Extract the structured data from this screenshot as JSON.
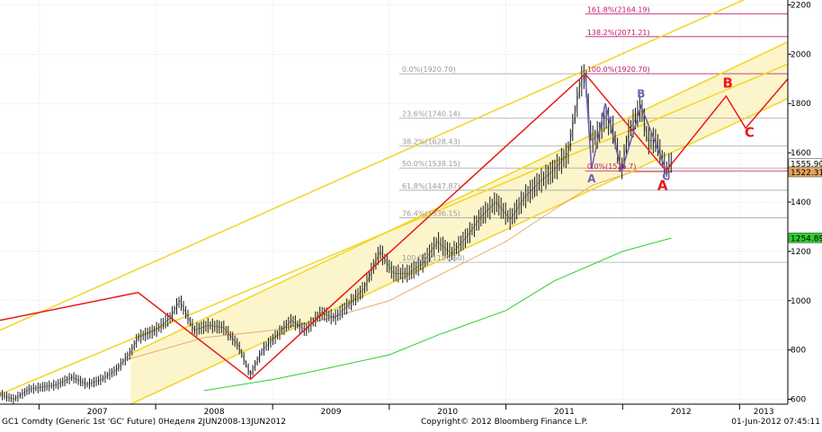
{
  "chart_data": {
    "type": "line",
    "title": "",
    "xlabel": "",
    "ylabel": "",
    "xlim": [
      "2006-09-01",
      "2013-06-01"
    ],
    "ylim": [
      580,
      2220
    ],
    "y_ticks": [
      600,
      800,
      1000,
      1200,
      1400,
      1600,
      1800,
      2000,
      2200
    ],
    "x_tick_labels": [
      {
        "label": "2007",
        "date": "2007-01-01"
      },
      {
        "label": "2008",
        "date": "2008-01-01"
      },
      {
        "label": "2009",
        "date": "2009-01-01"
      },
      {
        "label": "2010",
        "date": "2010-01-01"
      },
      {
        "label": "2011",
        "date": "2011-01-01"
      },
      {
        "label": "2012",
        "date": "2012-01-01"
      },
      {
        "label": "2013",
        "date": "2013-01-01"
      }
    ],
    "grid": true,
    "legend": "none",
    "colors": {
      "price": "#1a1a1a",
      "ma_fast": "#e8a662",
      "ma_slow": "#2fcf2f",
      "channel": "#f2d72e",
      "channel_fill": "#fbf3c2",
      "zigzag": "#e8191a",
      "wave_small": "#6a63b8",
      "fib_up": "#c0186e",
      "fib_down": "#999999"
    },
    "series": [
      {
        "name": "",
        "kind": "price",
        "x": [
          "2006-09-01",
          "2006-10-15",
          "2006-12-01",
          "2007-01-15",
          "2007-03-01",
          "2007-04-15",
          "2007-06-01",
          "2007-07-15",
          "2007-09-01",
          "2007-10-15",
          "2007-11-07",
          "2008-01-01",
          "2008-02-15",
          "2008-03-17",
          "2008-05-01",
          "2008-06-15",
          "2008-08-01",
          "2008-09-15",
          "2008-10-24",
          "2008-12-01",
          "2009-01-15",
          "2009-03-01",
          "2009-04-15",
          "2009-06-01",
          "2009-07-15",
          "2009-09-01",
          "2009-10-15",
          "2009-12-03",
          "2010-01-15",
          "2010-03-01",
          "2010-04-15",
          "2010-06-01",
          "2010-07-15",
          "2010-09-01",
          "2010-10-15",
          "2010-12-01",
          "2011-01-15",
          "2011-03-01",
          "2011-04-15",
          "2011-06-01",
          "2011-07-15",
          "2011-08-22",
          "2011-09-06",
          "2011-09-26",
          "2011-10-20",
          "2011-11-08",
          "2011-12-01",
          "2011-12-29",
          "2012-01-20",
          "2012-02-28",
          "2012-03-20",
          "2012-04-15",
          "2012-05-16",
          "2012-06-01"
        ],
        "y": [
          620,
          600,
          640,
          650,
          660,
          690,
          660,
          680,
          720,
          790,
          850,
          880,
          930,
          1000,
          880,
          900,
          890,
          820,
          700,
          800,
          860,
          920,
          880,
          950,
          930,
          990,
          1050,
          1200,
          1110,
          1110,
          1150,
          1240,
          1190,
          1260,
          1340,
          1400,
          1330,
          1420,
          1480,
          1530,
          1600,
          1880,
          1920,
          1650,
          1680,
          1750,
          1700,
          1530,
          1680,
          1790,
          1650,
          1650,
          1530,
          1560
        ]
      },
      {
        "name": "",
        "kind": "ma_fast",
        "x": [
          "2007-10-01",
          "2008-06-01",
          "2009-01-01",
          "2009-06-01",
          "2010-01-01",
          "2010-06-01",
          "2011-01-01",
          "2011-06-01",
          "2011-10-01",
          "2012-02-01",
          "2012-06-01"
        ],
        "y": [
          760,
          850,
          880,
          920,
          1000,
          1100,
          1240,
          1370,
          1470,
          1522,
          1522
        ]
      },
      {
        "name": "",
        "kind": "ma_slow",
        "x": [
          "2008-06-01",
          "2009-01-01",
          "2009-06-01",
          "2010-01-01",
          "2010-06-01",
          "2011-01-01",
          "2011-06-01",
          "2012-01-01",
          "2012-06-01"
        ],
        "y": [
          635,
          680,
          720,
          780,
          860,
          960,
          1080,
          1200,
          1254
        ]
      },
      {
        "name": "",
        "kind": "zigzag",
        "x": [
          "2006-09-01",
          "2007-11-07",
          "2008-10-24",
          "2011-09-06",
          "2012-05-16",
          "2012-11-20",
          "2013-01-20",
          "2013-06-01"
        ],
        "y": [
          920,
          1033,
          681,
          1920,
          1527,
          1830,
          1700,
          1900
        ]
      },
      {
        "name": "",
        "kind": "wave_small",
        "x": [
          "2011-09-06",
          "2011-09-26",
          "2011-11-08",
          "2011-12-29",
          "2012-02-28",
          "2012-05-16"
        ],
        "y": [
          1920,
          1535,
          1800,
          1523,
          1790,
          1527
        ]
      }
    ],
    "channels": [
      {
        "kind": "outer",
        "x": [
          "2006-09-01",
          "2013-06-01"
        ],
        "y": [
          620,
          1960
        ]
      },
      {
        "kind": "outer",
        "x": [
          "2006-09-01",
          "2013-06-01"
        ],
        "y": [
          880,
          2300
        ]
      },
      {
        "kind": "inner",
        "x": [
          "2007-10-15",
          "2013-06-01"
        ],
        "y": [
          785,
          2050
        ]
      },
      {
        "kind": "inner",
        "x": [
          "2007-10-15",
          "2013-06-01"
        ],
        "y": [
          580,
          1820
        ]
      }
    ],
    "fib_levels_down": [
      {
        "label": "0.0%(1920.70)",
        "value": 1920.7
      },
      {
        "label": "23.6%(1740.14)",
        "value": 1740.14
      },
      {
        "label": "38.2%(1628.43)",
        "value": 1628.43
      },
      {
        "label": "50.0%(1538.15)",
        "value": 1538.15
      },
      {
        "label": "61.8%(1447.87)",
        "value": 1447.87
      },
      {
        "label": "76.4%(1336.15)",
        "value": 1336.15
      },
      {
        "label": "100.0%(1155.60)",
        "value": 1155.6
      }
    ],
    "fib_levels_up": [
      {
        "label": "161.8%(2164.19)",
        "value": 2164.19
      },
      {
        "label": "138.2%(2071.21)",
        "value": 2071.21
      },
      {
        "label": "100.0%(1920.70)",
        "value": 1920.7
      },
      {
        "label": "0.0%(1526.7)",
        "value": 1526.7
      }
    ],
    "wave_labels": [
      {
        "text": "A",
        "size": "small",
        "x": "2011-09-26",
        "y": 1480
      },
      {
        "text": "B",
        "size": "small",
        "x": "2012-02-28",
        "y": 1825
      },
      {
        "text": "C",
        "size": "small",
        "x": "2012-05-16",
        "y": 1490
      },
      {
        "text": "A",
        "size": "big",
        "x": "2012-05-05",
        "y": 1450
      },
      {
        "text": "B",
        "size": "big",
        "x": "2012-11-25",
        "y": 1865
      },
      {
        "text": "C",
        "size": "big",
        "x": "2013-02-01",
        "y": 1665
      }
    ],
    "price_tags": [
      {
        "text": "1555.90",
        "value": 1555.9,
        "color": "#ffffff"
      },
      {
        "text": "1522.31",
        "value": 1522.31,
        "color": "#e8a662"
      },
      {
        "text": "1254.89",
        "value": 1254.89,
        "color": "#2fcf2f"
      }
    ],
    "footer": {
      "left": "GC1 Comdty (Generic 1st 'GC' Future) 0Неделя 2JUN2008-13JUN2012",
      "center": "Copyright© 2012 Bloomberg Finance L.P.",
      "right": "01-Jun-2012 07:45:11"
    }
  }
}
